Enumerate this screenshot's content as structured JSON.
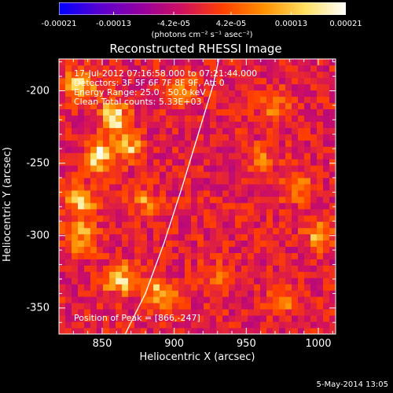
{
  "chart_data": {
    "type": "heatmap",
    "title": "Reconstructed RHESSI Image",
    "xlabel": "Heliocentric X (arcsec)",
    "ylabel": "Heliocentric Y (arcsec)",
    "xlim": [
      820,
      1012
    ],
    "ylim": [
      -368,
      -178
    ],
    "x_ticks": [
      850,
      900,
      950,
      1000
    ],
    "y_ticks": [
      -200,
      -250,
      -300,
      -350
    ],
    "colorbar": {
      "tick_labels": [
        "-0.00021",
        "-0.00013",
        "-4.2e-05",
        "4.2e-05",
        "0.00013",
        "0.00021"
      ],
      "tick_values": [
        -0.00021,
        -0.00013,
        -4.2e-05,
        4.2e-05,
        0.00013,
        0.00021
      ],
      "range": [
        -0.00021,
        0.00021
      ],
      "unit_label": "(photons cm⁻² s⁻¹ asec⁻²)",
      "colormap": [
        "#0000ff",
        "#5a00d0",
        "#9400a0",
        "#d01060",
        "#ff4000",
        "#ff9000",
        "#ffe060",
        "#ffffff"
      ]
    },
    "annotations": {
      "time_range": "17-Jul-2012 07:16:58.000 to 07:21:44.000",
      "detectors": "Detectors: 3F 5F 6F 7F 8F 9F, Att 0",
      "energy_range": "Energy Range: 25.0 - 50.0 keV",
      "method": "Clean    Total counts: 5.33E+03",
      "peak": "Position of Peak = [866,-247]"
    },
    "limb_curve": [
      [
        866,
        -368
      ],
      [
        880,
        -340
      ],
      [
        893,
        -305
      ],
      [
        905,
        -268
      ],
      [
        916,
        -232
      ],
      [
        927,
        -196
      ],
      [
        931,
        -178
      ]
    ],
    "source_regions": [
      {
        "x": 835,
        "y": -195,
        "value": 0.00018
      },
      {
        "x": 858,
        "y": -218,
        "value": 0.0002
      },
      {
        "x": 848,
        "y": -245,
        "value": 0.00021
      },
      {
        "x": 868,
        "y": -238,
        "value": 0.00019
      },
      {
        "x": 836,
        "y": -275,
        "value": 0.00017
      },
      {
        "x": 835,
        "y": -300,
        "value": 0.00018
      },
      {
        "x": 862,
        "y": -330,
        "value": 0.0002
      },
      {
        "x": 890,
        "y": -340,
        "value": 0.00016
      },
      {
        "x": 905,
        "y": -200,
        "value": 0.00012
      },
      {
        "x": 880,
        "y": -278,
        "value": 0.0001
      },
      {
        "x": 970,
        "y": -210,
        "value": 0.00011
      },
      {
        "x": 960,
        "y": -248,
        "value": 9e-05
      },
      {
        "x": 985,
        "y": -265,
        "value": 0.00011
      },
      {
        "x": 1000,
        "y": -300,
        "value": 0.00012
      },
      {
        "x": 930,
        "y": -330,
        "value": 0.0001
      },
      {
        "x": 975,
        "y": -345,
        "value": 9e-05
      }
    ]
  },
  "datestamp": "5-May-2014 13:05"
}
